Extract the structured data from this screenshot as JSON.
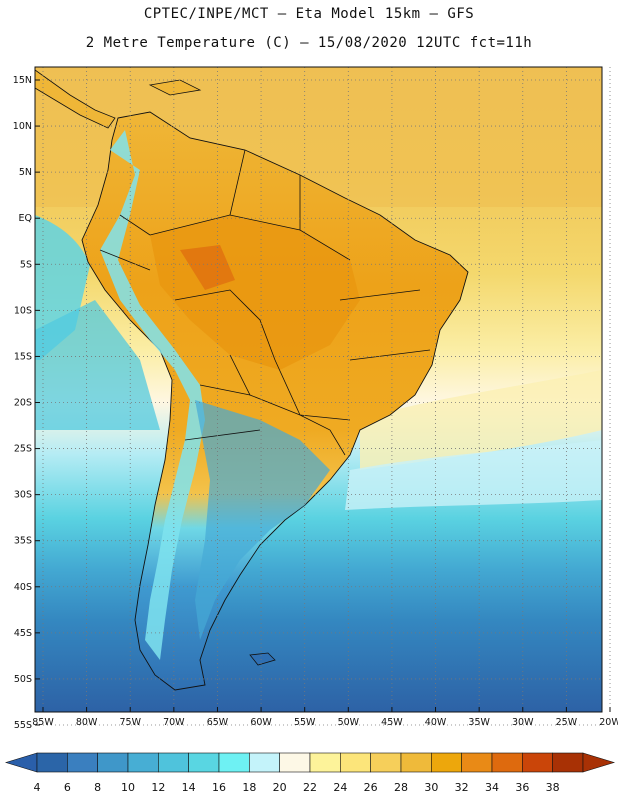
{
  "header": {
    "line1": "CPTEC/INPE/MCT –  Eta Model 15km – GFS",
    "line2": "2 Metre Temperature (C) – 15/08/2020 12UTC fct=11h"
  },
  "map": {
    "lat_labels": [
      "15N",
      "10N",
      "5N",
      "EQ",
      "5S",
      "10S",
      "15S",
      "20S",
      "25S",
      "30S",
      "35S",
      "40S",
      "45S",
      "50S",
      "55S"
    ],
    "lon_labels": [
      "85W",
      "80W",
      "75W",
      "70W",
      "65W",
      "60W",
      "55W",
      "50W",
      "45W",
      "40W",
      "35W",
      "30W",
      "25W",
      "20W"
    ],
    "lat_range": [
      15,
      -55
    ],
    "lon_range": [
      -85,
      -20
    ],
    "grid": true
  },
  "colorbar": {
    "labels": [
      "4",
      "6",
      "8",
      "10",
      "12",
      "14",
      "16",
      "18",
      "20",
      "22",
      "24",
      "26",
      "28",
      "30",
      "32",
      "34",
      "36",
      "38"
    ],
    "colors": [
      "#2b65a8",
      "#3a7fbf",
      "#3f97c9",
      "#47aed4",
      "#4fc3dc",
      "#59d6e2",
      "#6ef1f3",
      "#c4f3fa",
      "#fdf8e6",
      "#fdf39a",
      "#fce57a",
      "#f6cf5a",
      "#efba3a",
      "#eda70c",
      "#e98a16",
      "#de6a0e",
      "#ca4509",
      "#a83105"
    ],
    "low_end_color": "#2a5faa",
    "high_end_color": "#a83105"
  }
}
